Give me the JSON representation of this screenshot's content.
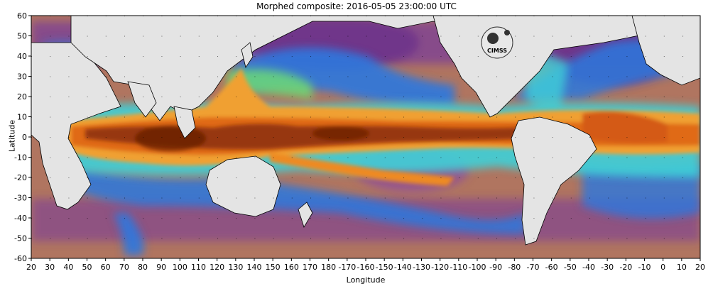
{
  "title": "Morphed composite: 2016-05-05 23:00:00 UTC",
  "logo_text": "CIMSS",
  "map": {
    "x_label": "Longitude",
    "y_label": "Latitude",
    "x_ticks": [
      "20",
      "30",
      "40",
      "50",
      "60",
      "70",
      "80",
      "90",
      "100",
      "110",
      "120",
      "130",
      "140",
      "150",
      "160",
      "170",
      "180",
      "-170",
      "-160",
      "-150",
      "-140",
      "-130",
      "-120",
      "-110",
      "-100",
      "-90",
      "-80",
      "-70",
      "-60",
      "-50",
      "-40",
      "-30",
      "-20",
      "-10",
      "0",
      "10",
      "20"
    ],
    "y_ticks": [
      "60",
      "50",
      "40",
      "30",
      "20",
      "10",
      "0",
      "-10",
      "-20",
      "-30",
      "-40",
      "-50",
      "-60"
    ],
    "lon_range": [
      20,
      380
    ],
    "lat_range": [
      -60,
      60
    ],
    "colors": {
      "land": "#e5e5e5",
      "ocean_dry": "#b57a62",
      "dry_purple": "#7f3f96",
      "blue": "#2d7fe0",
      "cyan": "#3ad4e0",
      "green": "#6fe06a",
      "yellow": "#f0e050",
      "orange": "#f08020",
      "dark_orange": "#c85010",
      "dark_brown": "#7a2a08"
    }
  }
}
